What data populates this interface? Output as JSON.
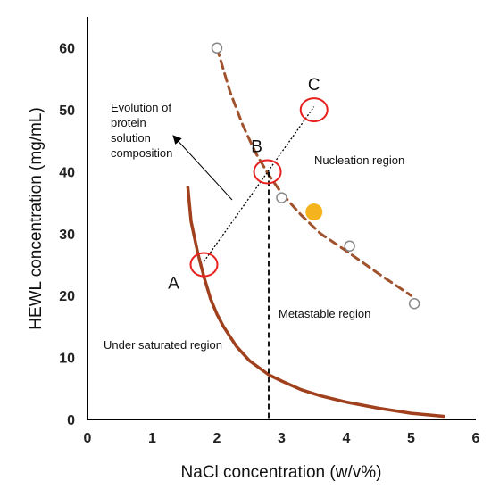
{
  "chart_data": {
    "type": "line",
    "xlabel": "NaCl concentration (w/v%)",
    "ylabel": "HEWL concentration (mg/mL)",
    "xlim": [
      0,
      6
    ],
    "ylim": [
      0,
      65
    ],
    "xticks": [
      "0",
      "1",
      "2",
      "3",
      "4",
      "5",
      "6"
    ],
    "yticks": [
      "0",
      "10",
      "20",
      "30",
      "40",
      "50",
      "60"
    ],
    "grid": false,
    "colors": {
      "solubility": "#a0401d",
      "supersolubility": "#a0522d",
      "open_markers": "#888888",
      "filled_marker": "#f5b41e",
      "highlight_circles": "#e8201e",
      "guides": "#000000"
    },
    "series": [
      {
        "role": "solubility-curve",
        "style": "solid",
        "x": [
          1.55,
          1.6,
          1.7,
          1.8,
          1.9,
          2.0,
          2.1,
          2.3,
          2.5,
          2.8,
          3.0,
          3.3,
          3.6,
          4.0,
          4.5,
          5.0,
          5.5
        ],
        "y": [
          37.5,
          32.0,
          27.0,
          23.0,
          19.5,
          17.0,
          15.0,
          11.8,
          9.5,
          7.2,
          6.2,
          4.8,
          3.8,
          2.8,
          1.8,
          1.0,
          0.5
        ]
      },
      {
        "role": "supersolubility-curve",
        "style": "dashed",
        "x": [
          2.0,
          2.2,
          2.4,
          2.6,
          2.8,
          3.0,
          3.3,
          3.6,
          4.0,
          4.5,
          5.0
        ],
        "y": [
          60.0,
          53.0,
          47.5,
          43.0,
          39.5,
          36.5,
          33.0,
          30.0,
          27.2,
          23.5,
          20.0
        ]
      },
      {
        "role": "open-markers",
        "style": "markers",
        "x": [
          2.0,
          3.0,
          4.05,
          5.05
        ],
        "y": [
          60.0,
          35.8,
          28.0,
          18.7
        ]
      },
      {
        "role": "filled-marker",
        "style": "marker",
        "x": [
          3.5
        ],
        "y": [
          33.5
        ]
      }
    ],
    "trajectory": {
      "x": [
        1.8,
        3.5
      ],
      "y": [
        25.5,
        50.5
      ]
    },
    "vertical_line_x": 2.8,
    "points": [
      {
        "label": "A",
        "x": 1.8,
        "y": 25.0
      },
      {
        "label": "B",
        "x": 2.78,
        "y": 40.0
      },
      {
        "label": "C",
        "x": 3.5,
        "y": 50.0
      }
    ],
    "annotations": {
      "evolution": [
        "Evolution of",
        "protein",
        "solution",
        "composition"
      ],
      "nucleation": "Nucleation region",
      "metastable": "Metastable region",
      "undersaturated": "Under saturated region"
    }
  }
}
